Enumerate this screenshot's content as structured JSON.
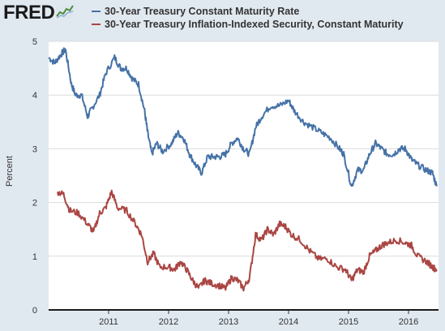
{
  "logo": {
    "text": "FRED",
    "icon": "fred-line-graph-icon"
  },
  "legend": [
    {
      "label": "30-Year Treasury Constant Maturity Rate",
      "color": "#4572a7"
    },
    {
      "label": "30-Year Treasury Inflation-Indexed Security, Constant Maturity",
      "color": "#aa4643"
    }
  ],
  "chart_data": {
    "type": "line",
    "title": "",
    "xlabel": "",
    "ylabel": "Percent",
    "xlim": [
      2010.0,
      2016.5
    ],
    "ylim": [
      0,
      5
    ],
    "x_ticks": [
      "2011",
      "2012",
      "2013",
      "2014",
      "2015",
      "2016"
    ],
    "y_ticks": [
      "0",
      "1",
      "2",
      "3",
      "4",
      "5"
    ],
    "grid": true,
    "legend_position": "top",
    "series": [
      {
        "name": "30-Year Treasury Constant Maturity Rate",
        "color": "#4572a7",
        "points": [
          [
            2010.0,
            4.7
          ],
          [
            2010.1,
            4.6
          ],
          [
            2010.2,
            4.75
          ],
          [
            2010.28,
            4.85
          ],
          [
            2010.38,
            4.2
          ],
          [
            2010.45,
            4.0
          ],
          [
            2010.55,
            4.0
          ],
          [
            2010.65,
            3.6
          ],
          [
            2010.72,
            3.75
          ],
          [
            2010.85,
            4.0
          ],
          [
            2010.95,
            4.4
          ],
          [
            2011.1,
            4.7
          ],
          [
            2011.2,
            4.5
          ],
          [
            2011.3,
            4.5
          ],
          [
            2011.4,
            4.3
          ],
          [
            2011.5,
            4.2
          ],
          [
            2011.6,
            3.7
          ],
          [
            2011.65,
            3.3
          ],
          [
            2011.72,
            2.9
          ],
          [
            2011.8,
            3.1
          ],
          [
            2011.9,
            2.95
          ],
          [
            2012.05,
            3.1
          ],
          [
            2012.15,
            3.3
          ],
          [
            2012.25,
            3.2
          ],
          [
            2012.35,
            2.9
          ],
          [
            2012.45,
            2.7
          ],
          [
            2012.55,
            2.55
          ],
          [
            2012.65,
            2.85
          ],
          [
            2012.75,
            2.85
          ],
          [
            2012.85,
            2.85
          ],
          [
            2012.95,
            2.9
          ],
          [
            2013.05,
            3.1
          ],
          [
            2013.15,
            3.2
          ],
          [
            2013.25,
            3.0
          ],
          [
            2013.35,
            2.9
          ],
          [
            2013.45,
            3.4
          ],
          [
            2013.55,
            3.6
          ],
          [
            2013.7,
            3.8
          ],
          [
            2013.85,
            3.8
          ],
          [
            2014.0,
            3.9
          ],
          [
            2014.1,
            3.7
          ],
          [
            2014.25,
            3.5
          ],
          [
            2014.4,
            3.4
          ],
          [
            2014.55,
            3.3
          ],
          [
            2014.7,
            3.2
          ],
          [
            2014.85,
            3.0
          ],
          [
            2014.92,
            2.9
          ],
          [
            2015.05,
            2.3
          ],
          [
            2015.15,
            2.6
          ],
          [
            2015.25,
            2.6
          ],
          [
            2015.35,
            2.9
          ],
          [
            2015.45,
            3.1
          ],
          [
            2015.55,
            3.0
          ],
          [
            2015.65,
            2.9
          ],
          [
            2015.75,
            2.9
          ],
          [
            2015.85,
            3.0
          ],
          [
            2015.95,
            3.0
          ],
          [
            2016.05,
            2.8
          ],
          [
            2016.15,
            2.7
          ],
          [
            2016.3,
            2.6
          ],
          [
            2016.4,
            2.55
          ],
          [
            2016.47,
            2.3
          ]
        ]
      },
      {
        "name": "30-Year Treasury Inflation-Indexed Security, Constant Maturity",
        "color": "#aa4643",
        "points": [
          [
            2010.15,
            2.2
          ],
          [
            2010.25,
            2.15
          ],
          [
            2010.35,
            1.85
          ],
          [
            2010.5,
            1.8
          ],
          [
            2010.65,
            1.6
          ],
          [
            2010.75,
            1.45
          ],
          [
            2010.85,
            1.8
          ],
          [
            2010.95,
            1.9
          ],
          [
            2011.05,
            2.2
          ],
          [
            2011.15,
            1.9
          ],
          [
            2011.3,
            1.85
          ],
          [
            2011.45,
            1.6
          ],
          [
            2011.55,
            1.4
          ],
          [
            2011.65,
            0.9
          ],
          [
            2011.75,
            1.05
          ],
          [
            2011.85,
            0.8
          ],
          [
            2012.0,
            0.8
          ],
          [
            2012.1,
            0.75
          ],
          [
            2012.2,
            0.9
          ],
          [
            2012.3,
            0.75
          ],
          [
            2012.4,
            0.55
          ],
          [
            2012.5,
            0.4
          ],
          [
            2012.6,
            0.55
          ],
          [
            2012.7,
            0.5
          ],
          [
            2012.85,
            0.45
          ],
          [
            2012.95,
            0.4
          ],
          [
            2013.05,
            0.6
          ],
          [
            2013.15,
            0.55
          ],
          [
            2013.25,
            0.4
          ],
          [
            2013.35,
            0.6
          ],
          [
            2013.45,
            1.4
          ],
          [
            2013.55,
            1.3
          ],
          [
            2013.65,
            1.5
          ],
          [
            2013.75,
            1.4
          ],
          [
            2013.85,
            1.6
          ],
          [
            2013.95,
            1.55
          ],
          [
            2014.05,
            1.4
          ],
          [
            2014.2,
            1.3
          ],
          [
            2014.35,
            1.1
          ],
          [
            2014.5,
            0.95
          ],
          [
            2014.65,
            0.95
          ],
          [
            2014.8,
            0.8
          ],
          [
            2014.95,
            0.75
          ],
          [
            2015.05,
            0.55
          ],
          [
            2015.15,
            0.75
          ],
          [
            2015.25,
            0.7
          ],
          [
            2015.35,
            1.0
          ],
          [
            2015.45,
            1.1
          ],
          [
            2015.55,
            1.2
          ],
          [
            2015.65,
            1.25
          ],
          [
            2015.8,
            1.3
          ],
          [
            2015.95,
            1.25
          ],
          [
            2016.05,
            1.2
          ],
          [
            2016.15,
            1.0
          ],
          [
            2016.3,
            0.9
          ],
          [
            2016.4,
            0.8
          ],
          [
            2016.47,
            0.75
          ]
        ]
      }
    ]
  }
}
